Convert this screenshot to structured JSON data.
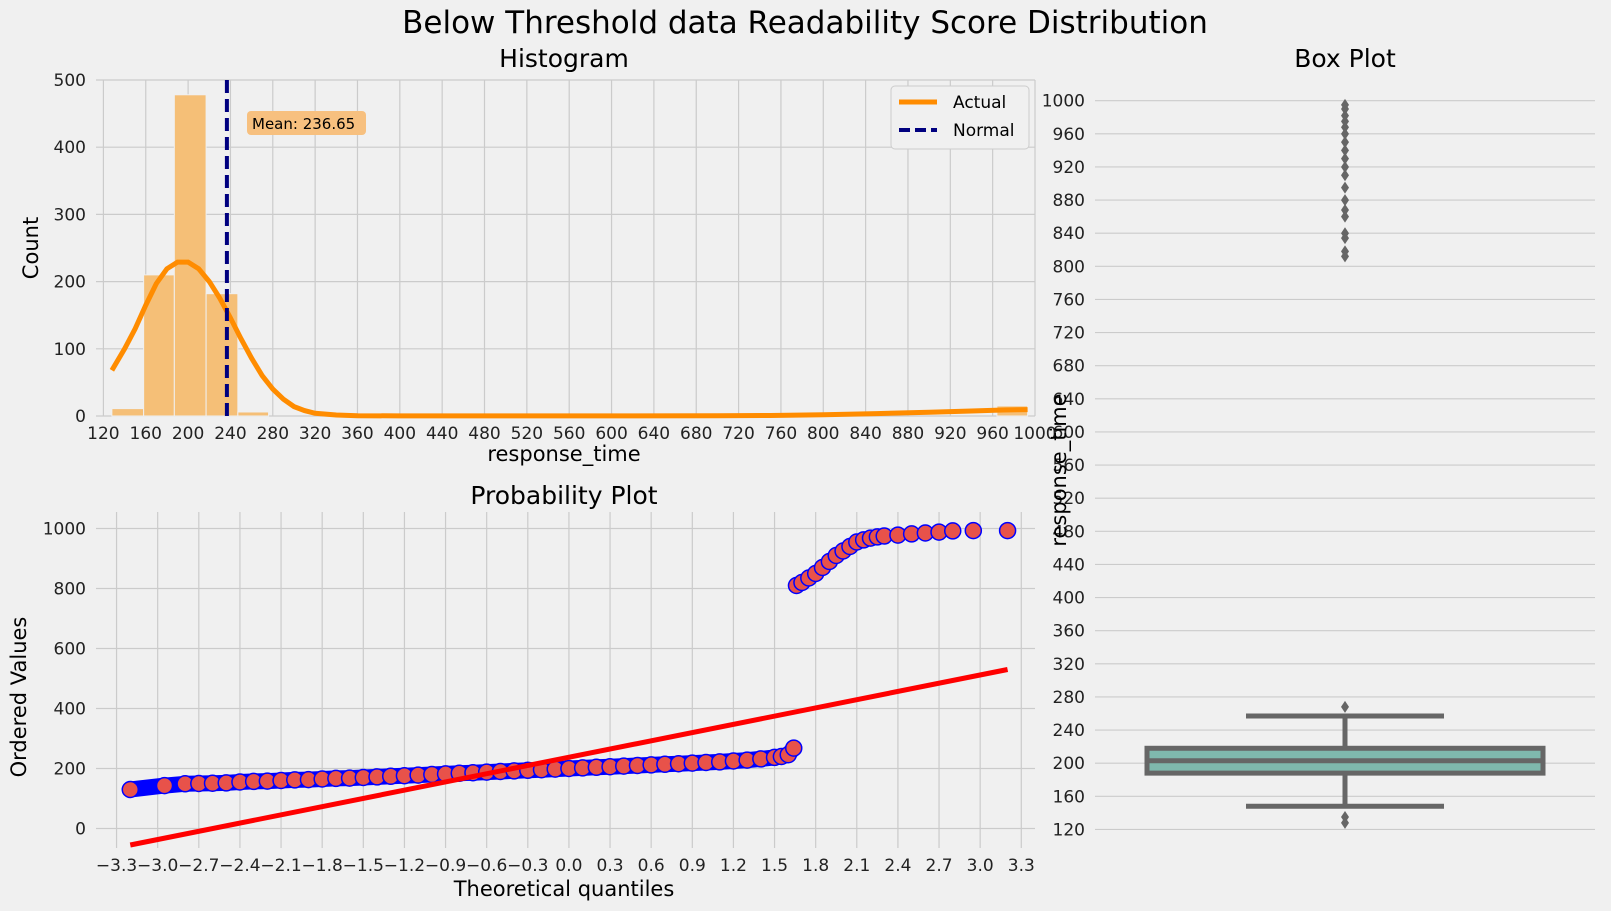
{
  "figure": {
    "suptitle": "Below Threshold data Readability Score Distribution"
  },
  "chart_data": [
    {
      "id": "histogram",
      "type": "bar",
      "title": "Histogram",
      "xlabel": "response_time",
      "ylabel": "Count",
      "xlim": [
        113,
        1000
      ],
      "ylim": [
        0,
        500
      ],
      "xticks": [
        "120",
        "160",
        "200",
        "240",
        "280",
        "320",
        "360",
        "400",
        "440",
        "480",
        "520",
        "560",
        "600",
        "640",
        "680",
        "720",
        "760",
        "800",
        "840",
        "880",
        "920",
        "960",
        "1000"
      ],
      "yticks": [
        "0",
        "100",
        "200",
        "300",
        "400",
        "500"
      ],
      "bins": [
        {
          "x0": 128,
          "x1": 158,
          "count": 11
        },
        {
          "x0": 158,
          "x1": 187,
          "count": 210
        },
        {
          "x0": 187,
          "x1": 217,
          "count": 478
        },
        {
          "x0": 217,
          "x1": 247,
          "count": 182
        },
        {
          "x0": 247,
          "x1": 276,
          "count": 6
        },
        {
          "x0": 964,
          "x1": 993,
          "count": 15
        }
      ],
      "kde_actual": {
        "x": [
          128,
          140,
          150,
          160,
          170,
          180,
          190,
          200,
          210,
          220,
          230,
          240,
          250,
          260,
          270,
          280,
          290,
          300,
          310,
          320,
          340,
          360,
          400,
          500,
          600,
          700,
          750,
          800,
          850,
          900,
          940,
          970,
          993
        ],
        "y": [
          68,
          100,
          130,
          165,
          197,
          219,
          229,
          229,
          219,
          200,
          175,
          146,
          115,
          86,
          60,
          40,
          25,
          14,
          8,
          4,
          1.5,
          0.5,
          0.2,
          0.1,
          0.1,
          0.3,
          0.8,
          1.8,
          3.5,
          5.5,
          7.5,
          9,
          9.5
        ]
      },
      "mean_line": {
        "value": 236.65,
        "label": "Mean: 236.65"
      },
      "legend": {
        "position": "upper right",
        "entries": [
          "Actual",
          "Normal"
        ]
      },
      "colors": {
        "bars": "#f5bf77",
        "kde": "#ff8c00",
        "mean": "#00007f",
        "annot": "#f7c07f"
      },
      "grid": true
    },
    {
      "id": "probability-plot",
      "type": "scatter",
      "title": "Probability Plot",
      "xlabel": "Theoretical quantiles",
      "ylabel": "Ordered Values",
      "xlim": [
        -3.45,
        3.4
      ],
      "ylim": [
        -65,
        1055
      ],
      "xticks": [
        "−3.3",
        "−3.0",
        "−2.7",
        "−2.4",
        "−2.1",
        "−1.8",
        "−1.5",
        "−1.2",
        "−0.9",
        "−0.6",
        "−0.3",
        "0.0",
        "0.3",
        "0.6",
        "0.9",
        "1.2",
        "1.5",
        "1.8",
        "2.1",
        "2.4",
        "2.7",
        "3.0",
        "3.3"
      ],
      "yticks": [
        "0",
        "200",
        "400",
        "600",
        "800",
        "1000"
      ],
      "low_points": [
        [
          -3.2,
          130
        ],
        [
          -2.95,
          143
        ],
        [
          -2.8,
          149
        ],
        [
          -2.7,
          150
        ],
        [
          -2.6,
          151
        ],
        [
          -2.5,
          152
        ],
        [
          -2.4,
          155
        ],
        [
          -2.3,
          157
        ],
        [
          -2.2,
          158
        ],
        [
          -2.1,
          160
        ],
        [
          -2.0,
          162
        ],
        [
          -1.9,
          163
        ],
        [
          -1.8,
          165
        ],
        [
          -1.7,
          167
        ],
        [
          -1.6,
          168
        ],
        [
          -1.5,
          170
        ],
        [
          -1.4,
          172
        ],
        [
          -1.3,
          174
        ],
        [
          -1.2,
          176
        ],
        [
          -1.1,
          178
        ],
        [
          -1.0,
          180
        ],
        [
          -0.9,
          182
        ],
        [
          -0.8,
          184
        ],
        [
          -0.7,
          186
        ],
        [
          -0.6,
          188
        ],
        [
          -0.5,
          190
        ],
        [
          -0.4,
          192
        ],
        [
          -0.3,
          194
        ],
        [
          -0.2,
          196
        ],
        [
          -0.1,
          198
        ],
        [
          0.0,
          200
        ],
        [
          0.1,
          202
        ],
        [
          0.2,
          204
        ],
        [
          0.3,
          206
        ],
        [
          0.4,
          208
        ],
        [
          0.5,
          210
        ],
        [
          0.6,
          212
        ],
        [
          0.7,
          214
        ],
        [
          0.8,
          216
        ],
        [
          0.9,
          218
        ],
        [
          1.0,
          220
        ],
        [
          1.1,
          222
        ],
        [
          1.2,
          225
        ],
        [
          1.3,
          228
        ],
        [
          1.4,
          232
        ],
        [
          1.5,
          237
        ],
        [
          1.55,
          240
        ],
        [
          1.6,
          246
        ],
        [
          1.64,
          268
        ]
      ],
      "high_points": [
        [
          1.66,
          810
        ],
        [
          1.7,
          820
        ],
        [
          1.75,
          835
        ],
        [
          1.8,
          850
        ],
        [
          1.85,
          870
        ],
        [
          1.9,
          890
        ],
        [
          1.95,
          910
        ],
        [
          2.0,
          925
        ],
        [
          2.05,
          940
        ],
        [
          2.1,
          955
        ],
        [
          2.15,
          962
        ],
        [
          2.2,
          968
        ],
        [
          2.25,
          972
        ],
        [
          2.3,
          975
        ],
        [
          2.4,
          978
        ],
        [
          2.5,
          982
        ],
        [
          2.6,
          985
        ],
        [
          2.7,
          988
        ],
        [
          2.8,
          992
        ],
        [
          2.95,
          993
        ],
        [
          3.2,
          993
        ]
      ],
      "fit_line": {
        "x": [
          -3.2,
          3.2
        ],
        "y": [
          -55,
          530
        ]
      },
      "colors": {
        "marker_fill": "#e8524a",
        "marker_edge": "#0000ff",
        "line": "#ff0000"
      },
      "grid": true
    },
    {
      "id": "box-plot",
      "type": "box",
      "title": "Box Plot",
      "ylabel": "response_time",
      "ylim": [
        100,
        1025
      ],
      "yticks": [
        "120",
        "160",
        "200",
        "240",
        "280",
        "320",
        "360",
        "400",
        "440",
        "480",
        "520",
        "560",
        "600",
        "640",
        "680",
        "720",
        "760",
        "800",
        "840",
        "880",
        "920",
        "960",
        "1000"
      ],
      "box": {
        "whisker_low": 148,
        "q1": 188,
        "median": 203,
        "q3": 218,
        "whisker_high": 257
      },
      "outliers": [
        128,
        135,
        268,
        812,
        818,
        834,
        840,
        860,
        868,
        880,
        895,
        910,
        920,
        930,
        940,
        950,
        960,
        968,
        975,
        982,
        990,
        995
      ],
      "colors": {
        "box_fill": "#7fb8ad",
        "box_edge": "#666666",
        "outlier": "#666666"
      },
      "grid": true
    }
  ]
}
